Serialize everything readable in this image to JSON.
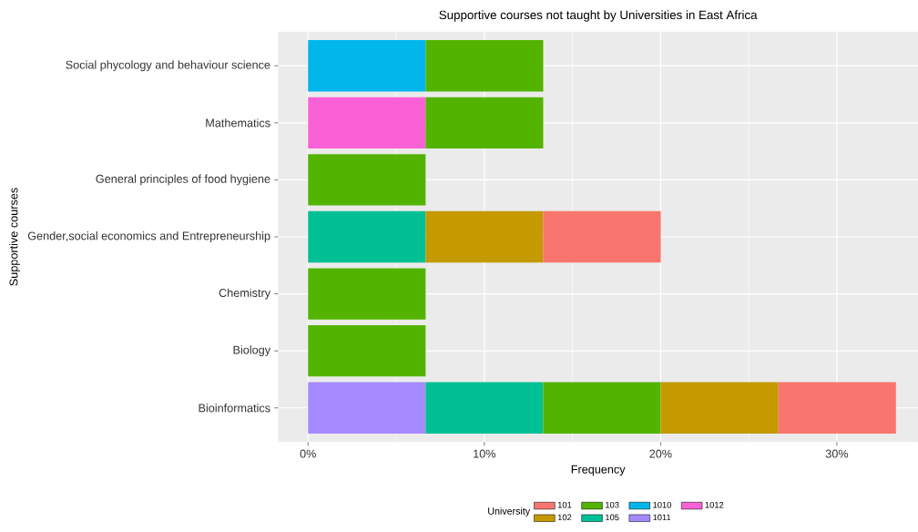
{
  "chart_data": {
    "type": "bar",
    "orientation": "horizontal",
    "stacked": true,
    "title": "Supportive courses not taught by Universities in East Africa",
    "xlabel": "Frequency",
    "ylabel": "Supportive courses",
    "legend_title": "University",
    "categories": [
      "Social phycology and behaviour science",
      "Mathematics",
      "General principles of food hygiene",
      "Gender,social economics and Entrepreneurship",
      "Chemistry",
      "Biology",
      "Bioinformatics"
    ],
    "series": [
      {
        "name": "1012",
        "color": "#fb61d7",
        "values": [
          null,
          6.67,
          null,
          null,
          null,
          null,
          null
        ]
      },
      {
        "name": "1011",
        "color": "#a58aff",
        "values": [
          null,
          null,
          null,
          null,
          null,
          null,
          6.67
        ]
      },
      {
        "name": "1010",
        "color": "#00b6eb",
        "values": [
          6.67,
          null,
          null,
          null,
          null,
          null,
          null
        ]
      },
      {
        "name": "105",
        "color": "#00c094",
        "values": [
          null,
          null,
          null,
          6.67,
          null,
          null,
          6.67
        ]
      },
      {
        "name": "103",
        "color": "#53b400",
        "values": [
          6.67,
          6.67,
          6.67,
          null,
          6.67,
          6.67,
          6.67
        ]
      },
      {
        "name": "102",
        "color": "#c49a00",
        "values": [
          null,
          null,
          null,
          6.67,
          null,
          null,
          6.67
        ]
      },
      {
        "name": "101",
        "color": "#f8766d",
        "values": [
          null,
          null,
          null,
          6.67,
          null,
          null,
          6.67
        ]
      }
    ],
    "xlim": [
      -1.7,
      34.6
    ],
    "xticks": [
      {
        "value": 0,
        "label": "0%"
      },
      {
        "value": 10,
        "label": "10%"
      },
      {
        "value": 20,
        "label": "20%"
      },
      {
        "value": 30,
        "label": "30%"
      }
    ],
    "grid": true,
    "legend": "bottom"
  }
}
